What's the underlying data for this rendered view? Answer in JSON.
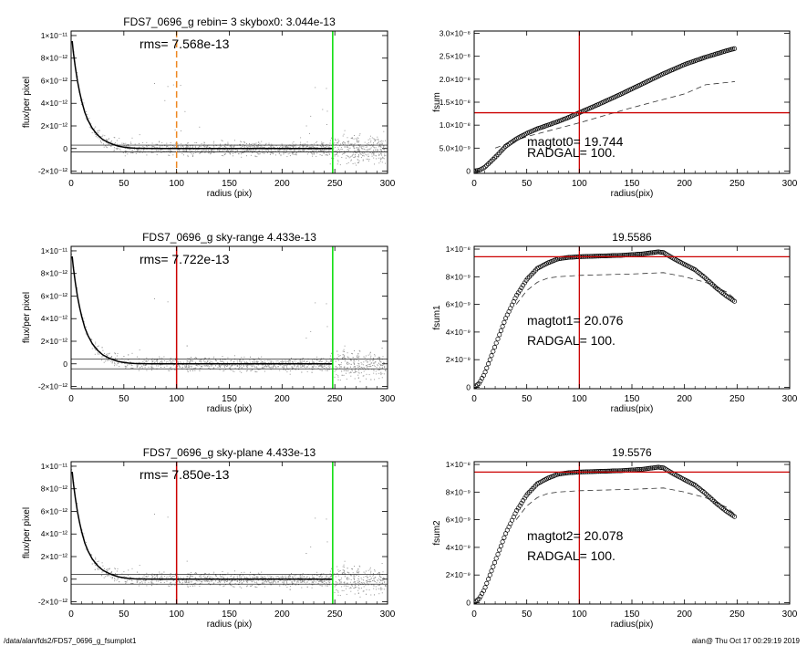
{
  "footer": {
    "path": "/data/alan/fds2/FDS7_0696_g_fsumplot1",
    "stamp": "alan@  Thu Oct 17 00:29:19 2019"
  },
  "colors": {
    "sky_red": "#cc0000",
    "orange_dash": "#ee8822",
    "green": "#00dd00",
    "gray_points": "#999999"
  },
  "chart_data": [
    {
      "type": "scatter",
      "title": "FDS7_0696_g rebin= 3    skybox0:  3.044e-13",
      "annotation": "rms= 7.568e-13",
      "xlabel": "radius (pix)",
      "ylabel": "flux/per pixel",
      "xlim": [
        0,
        300
      ],
      "ylim": [
        -2.2e-12,
        1.04e-11
      ],
      "xticks": [
        "0",
        "50",
        "100",
        "150",
        "200",
        "250",
        "300"
      ],
      "yticks": [
        "-2×10⁻¹²",
        "0",
        "2×10⁻¹²",
        "4×10⁻¹²",
        "6×10⁻¹²",
        "8×10⁻¹²",
        "1×10⁻¹¹"
      ],
      "ytick_values": [
        -2e-12,
        0,
        2e-12,
        4e-12,
        6e-12,
        8e-12,
        1e-11
      ],
      "sky_lines": [
        3e-13,
        -3e-13
      ],
      "vline_primary": {
        "x": 100,
        "style": "dashed",
        "color": "orange"
      },
      "vline_secondary": {
        "x": 248,
        "color": "green"
      },
      "profile": {
        "x": [
          1,
          2,
          4,
          6,
          8,
          10,
          13,
          16,
          20,
          25,
          30,
          35,
          40,
          45,
          50,
          55,
          60,
          70,
          80,
          90,
          100,
          120,
          140,
          160,
          180,
          200,
          220,
          248
        ],
        "y": [
          9.5e-12,
          8.6e-12,
          7.2e-12,
          6e-12,
          5e-12,
          4.2e-12,
          3.2e-12,
          2.5e-12,
          1.8e-12,
          1.2e-12,
          8e-13,
          5.5e-13,
          3.5e-13,
          2e-13,
          1.2e-13,
          6e-14,
          3e-14,
          1e-14,
          5e-15,
          2e-15,
          0,
          0,
          0,
          0,
          0,
          0,
          0,
          0
        ]
      }
    },
    {
      "type": "line",
      "title": "",
      "xlabel": "radius(pix)",
      "ylabel": "fsum",
      "xlim": [
        0,
        300
      ],
      "ylim": [
        -5e-10,
        3.05e-08
      ],
      "xticks": [
        "0",
        "50",
        "100",
        "150",
        "200",
        "250",
        "300"
      ],
      "yticks": [
        "0",
        "5.0×10⁻⁹",
        "1.0×10⁻⁸",
        "1.5×10⁻⁸",
        "2.0×10⁻⁸",
        "2.5×10⁻⁸",
        "3.0×10⁻⁸"
      ],
      "ytick_values": [
        0,
        5e-09,
        1e-08,
        1.5e-08,
        2e-08,
        2.5e-08,
        3e-08
      ],
      "hline": 1.27e-08,
      "vline": 100,
      "annotations": [
        "magtot0=  19.744",
        "RADGAL=    100."
      ],
      "series": [
        {
          "style": "circles",
          "x": [
            0,
            5,
            10,
            20,
            30,
            40,
            50,
            60,
            70,
            80,
            90,
            100,
            120,
            140,
            160,
            180,
            200,
            220,
            240,
            248
          ],
          "values": [
            0,
            2e-10,
            8e-10,
            3e-09,
            5.4e-09,
            7e-09,
            8.2e-09,
            9.2e-09,
            1e-08,
            1.08e-08,
            1.17e-08,
            1.27e-08,
            1.47e-08,
            1.68e-08,
            1.9e-08,
            2.12e-08,
            2.32e-08,
            2.48e-08,
            2.62e-08,
            2.67e-08
          ]
        },
        {
          "style": "dashed",
          "x": [
            20,
            50,
            100,
            150,
            200,
            220,
            248
          ],
          "values": [
            5e-09,
            7.5e-09,
            1.05e-08,
            1.38e-08,
            1.68e-08,
            1.88e-08,
            1.95e-08
          ]
        }
      ]
    },
    {
      "type": "scatter",
      "title": "FDS7_0696_g sky-range  4.433e-13",
      "annotation": "rms= 7.722e-13",
      "xlabel": "radius (pix)",
      "ylabel": "flux/per pixel",
      "xlim": [
        0,
        300
      ],
      "ylim": [
        -2.2e-12,
        1.04e-11
      ],
      "xticks": [
        "0",
        "50",
        "100",
        "150",
        "200",
        "250",
        "300"
      ],
      "yticks": [
        "-2×10⁻¹²",
        "0",
        "2×10⁻¹²",
        "4×10⁻¹²",
        "6×10⁻¹²",
        "8×10⁻¹²",
        "1×10⁻¹¹"
      ],
      "ytick_values": [
        -2e-12,
        0,
        2e-12,
        4e-12,
        6e-12,
        8e-12,
        1e-11
      ],
      "sky_lines": [
        4.4e-13,
        -4.4e-13
      ],
      "vline_primary": {
        "x": 100,
        "style": "solid",
        "color": "red"
      },
      "vline_secondary": {
        "x": 248,
        "color": "green"
      },
      "profile": {
        "x": [
          1,
          2,
          4,
          6,
          8,
          10,
          13,
          16,
          20,
          25,
          30,
          35,
          40,
          45,
          50,
          55,
          60,
          70,
          80,
          90,
          100,
          120,
          140,
          160,
          180,
          200,
          220,
          248
        ],
        "y": [
          9.5e-12,
          8.6e-12,
          7.2e-12,
          6e-12,
          5e-12,
          4.2e-12,
          3.2e-12,
          2.5e-12,
          1.8e-12,
          1.2e-12,
          8e-13,
          5.5e-13,
          3.5e-13,
          2e-13,
          1.2e-13,
          6e-14,
          3e-14,
          1e-14,
          5e-15,
          2e-15,
          0,
          0,
          0,
          0,
          0,
          0,
          0,
          0
        ]
      }
    },
    {
      "type": "line",
      "title": "19.5586",
      "xlabel": "radius(pix)",
      "ylabel": "fsum1",
      "xlim": [
        0,
        300
      ],
      "ylim": [
        -1e-10,
        1.02e-08
      ],
      "xticks": [
        "0",
        "50",
        "100",
        "150",
        "200",
        "250",
        "300"
      ],
      "yticks": [
        "0",
        "2×10⁻⁹",
        "4×10⁻⁹",
        "6×10⁻⁹",
        "8×10⁻⁹",
        "1×10⁻⁸"
      ],
      "ytick_values": [
        0,
        2e-09,
        4e-09,
        6e-09,
        8e-09,
        1e-08
      ],
      "hline": 9.45e-09,
      "vline": 100,
      "annotations": [
        "magtot1=  20.076",
        "RADGAL=    100."
      ],
      "series": [
        {
          "style": "circles",
          "x": [
            0,
            5,
            10,
            15,
            20,
            25,
            30,
            35,
            40,
            50,
            60,
            70,
            80,
            90,
            100,
            120,
            140,
            160,
            175,
            180,
            190,
            200,
            210,
            220,
            230,
            240,
            248
          ],
          "values": [
            0,
            3e-10,
            1e-09,
            2e-09,
            3e-09,
            4e-09,
            5e-09,
            5.8e-09,
            6.6e-09,
            7.8e-09,
            8.6e-09,
            9e-09,
            9.3e-09,
            9.4e-09,
            9.45e-09,
            9.5e-09,
            9.55e-09,
            9.65e-09,
            9.8e-09,
            9.75e-09,
            9.3e-09,
            8.9e-09,
            8.5e-09,
            7.9e-09,
            7.2e-09,
            6.6e-09,
            6.2e-09
          ]
        },
        {
          "style": "dashed",
          "x": [
            40,
            50,
            60,
            70,
            80,
            100,
            150,
            180,
            200,
            220,
            240,
            248
          ],
          "values": [
            6e-09,
            7e-09,
            7.6e-09,
            7.9e-09,
            8e-09,
            8.1e-09,
            8.2e-09,
            8.3e-09,
            8e-09,
            7.6e-09,
            6.9e-09,
            6.4e-09
          ]
        }
      ]
    },
    {
      "type": "scatter",
      "title": "FDS7_0696_g sky-plane  4.433e-13",
      "annotation": "rms= 7.850e-13",
      "xlabel": "radius (pix)",
      "ylabel": "flux/per pixel",
      "xlim": [
        0,
        300
      ],
      "ylim": [
        -2.2e-12,
        1.04e-11
      ],
      "xticks": [
        "0",
        "50",
        "100",
        "150",
        "200",
        "250",
        "300"
      ],
      "yticks": [
        "-2×10⁻¹²",
        "0",
        "2×10⁻¹²",
        "4×10⁻¹²",
        "6×10⁻¹²",
        "8×10⁻¹²",
        "1×10⁻¹¹"
      ],
      "ytick_values": [
        -2e-12,
        0,
        2e-12,
        4e-12,
        6e-12,
        8e-12,
        1e-11
      ],
      "sky_lines": [
        4.4e-13,
        -4.4e-13
      ],
      "vline_primary": {
        "x": 100,
        "style": "solid",
        "color": "red"
      },
      "vline_secondary": {
        "x": 248,
        "color": "green"
      },
      "profile": {
        "x": [
          1,
          2,
          4,
          6,
          8,
          10,
          13,
          16,
          20,
          25,
          30,
          35,
          40,
          45,
          50,
          55,
          60,
          70,
          80,
          90,
          100,
          120,
          140,
          160,
          180,
          200,
          220,
          248
        ],
        "y": [
          9.5e-12,
          8.6e-12,
          7.2e-12,
          6e-12,
          5e-12,
          4.2e-12,
          3.2e-12,
          2.5e-12,
          1.8e-12,
          1.2e-12,
          8e-13,
          5.5e-13,
          3.5e-13,
          2e-13,
          1.2e-13,
          6e-14,
          3e-14,
          1e-14,
          5e-15,
          2e-15,
          0,
          0,
          0,
          0,
          0,
          0,
          0,
          0
        ]
      }
    },
    {
      "type": "line",
      "title": "19.5576",
      "xlabel": "radius(pix)",
      "ylabel": "fsum2",
      "xlim": [
        0,
        300
      ],
      "ylim": [
        -1e-10,
        1.02e-08
      ],
      "xticks": [
        "0",
        "50",
        "100",
        "150",
        "200",
        "250",
        "300"
      ],
      "yticks": [
        "0",
        "2×10⁻⁹",
        "4×10⁻⁹",
        "6×10⁻⁹",
        "8×10⁻⁹",
        "1×10⁻⁸"
      ],
      "ytick_values": [
        0,
        2e-09,
        4e-09,
        6e-09,
        8e-09,
        1e-08
      ],
      "hline": 9.45e-09,
      "vline": 100,
      "annotations": [
        "magtot2=  20.078",
        "RADGAL=    100."
      ],
      "series": [
        {
          "style": "circles",
          "x": [
            0,
            5,
            10,
            15,
            20,
            25,
            30,
            35,
            40,
            50,
            60,
            70,
            80,
            90,
            100,
            120,
            140,
            160,
            175,
            180,
            190,
            200,
            210,
            220,
            230,
            240,
            248
          ],
          "values": [
            0,
            3e-10,
            1e-09,
            2e-09,
            3e-09,
            4e-09,
            5e-09,
            5.8e-09,
            6.6e-09,
            7.8e-09,
            8.6e-09,
            9e-09,
            9.3e-09,
            9.4e-09,
            9.45e-09,
            9.5e-09,
            9.55e-09,
            9.65e-09,
            9.8e-09,
            9.75e-09,
            9.3e-09,
            8.9e-09,
            8.5e-09,
            7.9e-09,
            7.2e-09,
            6.6e-09,
            6.2e-09
          ]
        },
        {
          "style": "dashed",
          "x": [
            40,
            50,
            60,
            70,
            80,
            100,
            150,
            180,
            200,
            220,
            240,
            248
          ],
          "values": [
            6e-09,
            7e-09,
            7.6e-09,
            7.9e-09,
            8e-09,
            8.1e-09,
            8.2e-09,
            8.3e-09,
            8e-09,
            7.6e-09,
            6.9e-09,
            6.4e-09
          ]
        }
      ]
    }
  ]
}
